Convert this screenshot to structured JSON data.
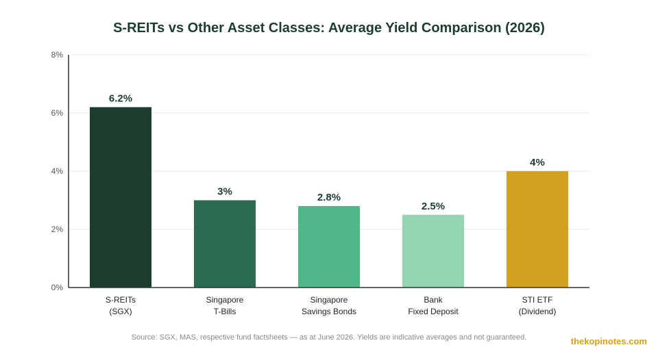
{
  "chart_data": {
    "type": "bar",
    "title": "S-REITs vs Other Asset Classes: Average Yield Comparison (2026)",
    "categories": [
      [
        "S-REITs",
        "(SGX)"
      ],
      [
        "Singapore",
        "T-Bills"
      ],
      [
        "Singapore",
        "Savings Bonds"
      ],
      [
        "Bank",
        "Fixed Deposit"
      ],
      [
        "STI ETF",
        "(Dividend)"
      ]
    ],
    "values": [
      6.2,
      3,
      2.8,
      2.5,
      4
    ],
    "value_labels": [
      "6.2%",
      "3%",
      "2.8%",
      "2.5%",
      "4%"
    ],
    "colors": [
      "#1c3d2d",
      "#2d6a52",
      "#52b788",
      "#95d5b2",
      "#d4a020"
    ],
    "ylim": [
      0,
      8
    ],
    "yticks": [
      0,
      2,
      4,
      6,
      8
    ],
    "ytick_labels": [
      "0%",
      "2%",
      "4%",
      "6%",
      "8%"
    ],
    "grid": true,
    "xlabel": "",
    "ylabel": ""
  },
  "footer": {
    "source": "Source: SGX, MAS, respective fund factsheets — as at June 2026. Yields are indicative averages and not guaranteed.",
    "brand": "thekopinotes.com"
  }
}
